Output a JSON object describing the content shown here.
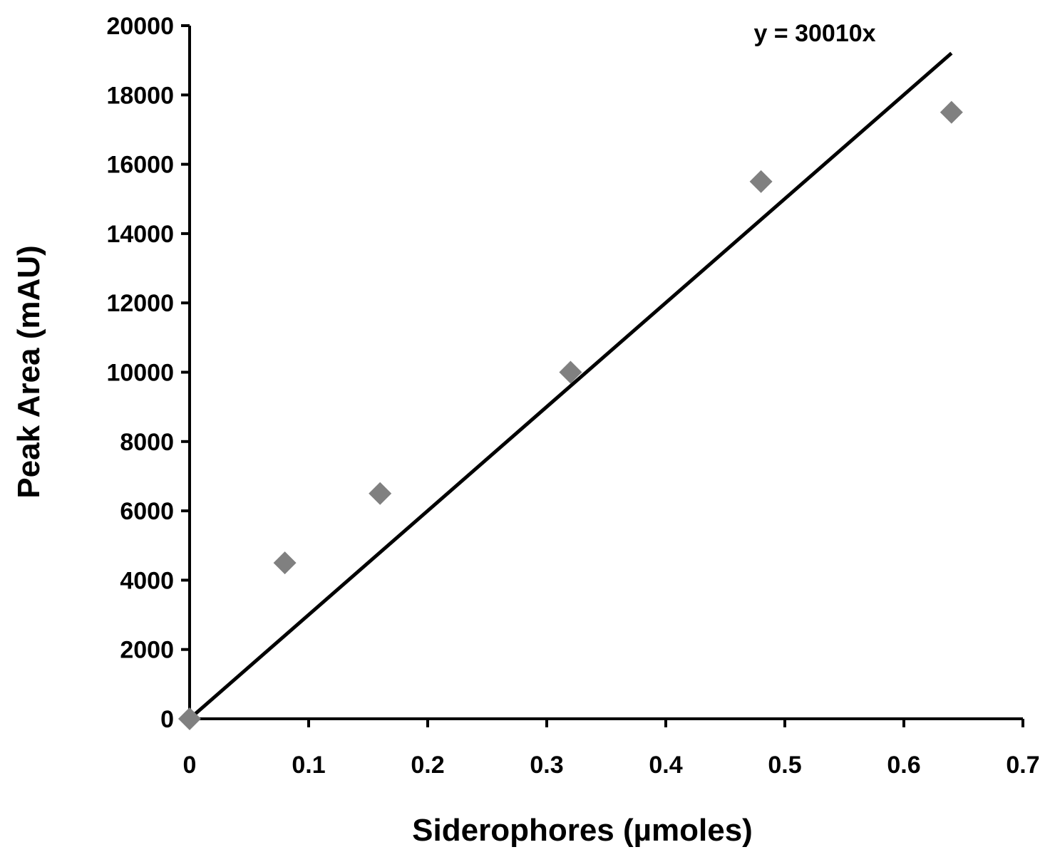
{
  "chart_data": {
    "type": "scatter",
    "title": "",
    "xlabel": "Siderophores (µmoles)",
    "ylabel": "Peak Area (mAU)",
    "xlim": [
      0,
      0.7
    ],
    "ylim": [
      0,
      20000
    ],
    "x_ticks": [
      "0",
      "0.1",
      "0.2",
      "0.3",
      "0.4",
      "0.5",
      "0.6",
      "0.7"
    ],
    "y_ticks": [
      "0",
      "2000",
      "4000",
      "6000",
      "8000",
      "10000",
      "12000",
      "14000",
      "16000",
      "18000",
      "20000"
    ],
    "grid": false,
    "legend": "none",
    "marker": "diamond",
    "marker_color": "#808080",
    "series": [
      {
        "x": [
          0,
          0.08,
          0.16,
          0.32,
          0.48,
          0.64
        ],
        "y": [
          0,
          4500,
          6500,
          10000,
          15500,
          17500
        ]
      }
    ],
    "trendline": {
      "type": "linear",
      "slope": 30010,
      "intercept": 0,
      "x_range": [
        0,
        0.64
      ],
      "color": "#000000",
      "equation_label": "y = 30010x"
    }
  }
}
